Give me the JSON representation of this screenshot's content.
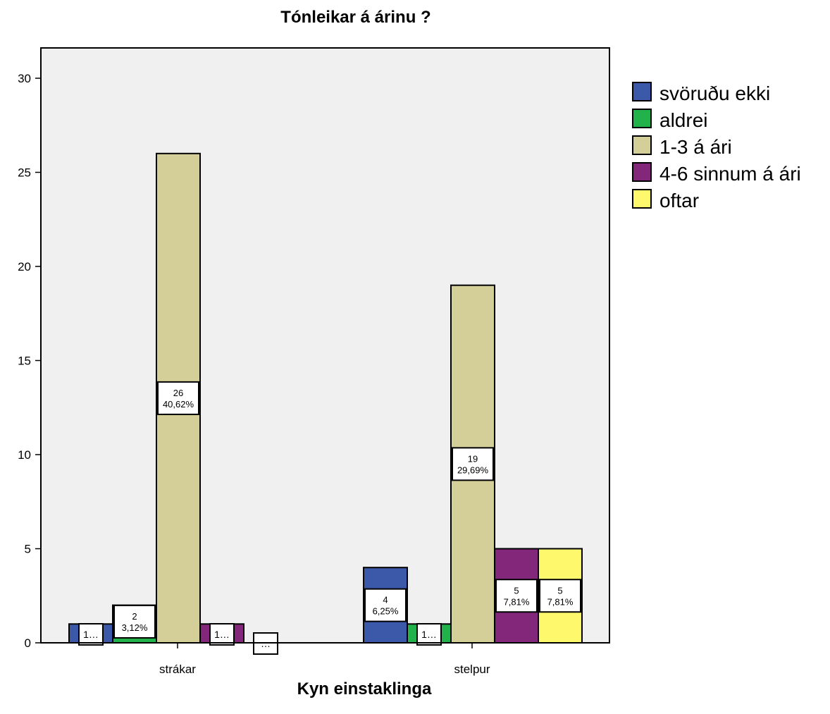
{
  "chart_data": {
    "type": "bar",
    "title": "Tónleikar á árinu ?",
    "xlabel": "Kyn einstaklinga",
    "ylabel": "",
    "ylim": [
      0,
      32
    ],
    "yticks": [
      0,
      5,
      10,
      15,
      20,
      25,
      30
    ],
    "grid": false,
    "legend_position": "right",
    "categories": [
      "strákar",
      "stelpur"
    ],
    "series": [
      {
        "name": "svöruðu ekki",
        "color": "#3c58a8",
        "values": [
          1,
          4
        ],
        "labels": [
          "1...",
          "4\n6,25%"
        ]
      },
      {
        "name": "aldrei",
        "color": "#22b24c",
        "values": [
          2,
          1
        ],
        "labels": [
          "2\n3,12%",
          "1..."
        ]
      },
      {
        "name": "1-3 á ári",
        "color": "#d4cf98",
        "values": [
          26,
          19
        ],
        "labels": [
          "26\n40,62%",
          "19\n29,69%"
        ]
      },
      {
        "name": "4-6 sinnum á ári",
        "color": "#82277a",
        "values": [
          1,
          5
        ],
        "labels": [
          "1...",
          "5\n7,81%"
        ]
      },
      {
        "name": "oftar",
        "color": "#fdf86c",
        "values": [
          0,
          5
        ],
        "labels": [
          "...",
          "5\n7,81%"
        ]
      }
    ]
  }
}
